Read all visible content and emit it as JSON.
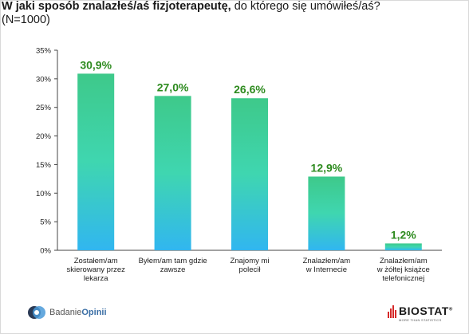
{
  "title": {
    "bold": "W jaki sposób znalazłeś/aś fizjoterapeutę,",
    "normal": " do którego się umówiłeś/aś?",
    "line2": "(N=1000)"
  },
  "colors": {
    "bar_top": "#3ec98a",
    "bar_mid": "#3fd6b0",
    "bar_bottom": "#31b6f0",
    "label_green": "#2e8b1f",
    "axis": "#444444",
    "grid": "#d0d0d0"
  },
  "chart_data": {
    "type": "bar",
    "categories": [
      [
        "Zostałem/am",
        "skierowany przez",
        "lekarza"
      ],
      [
        "Byłem/am tam gdzie",
        "zawsze"
      ],
      [
        "Znajomy mi",
        "polecił"
      ],
      [
        "Znalazłem/am",
        "w Internecie"
      ],
      [
        "Znalazłem/am",
        "w żółtej książce",
        "telefonicznej"
      ]
    ],
    "values": [
      30.9,
      27.0,
      26.6,
      12.9,
      1.2
    ],
    "value_labels": [
      "30,9%",
      "27,0%",
      "26,6%",
      "12,9%",
      "1,2%"
    ],
    "ylim": [
      0,
      35
    ],
    "yticks": [
      0,
      5,
      10,
      15,
      20,
      25,
      30,
      35
    ],
    "ytick_labels": [
      "0%",
      "5%",
      "10%",
      "15%",
      "20%",
      "25%",
      "30%",
      "35%"
    ],
    "grid": false,
    "legend": "none"
  },
  "footer": {
    "logo_left": "Badanie",
    "logo_left_bold": "Opinii",
    "logo_right": "BIOSTAT",
    "logo_right_reg": "®",
    "logo_right_sub": "MORE THAN STATISTICS"
  }
}
